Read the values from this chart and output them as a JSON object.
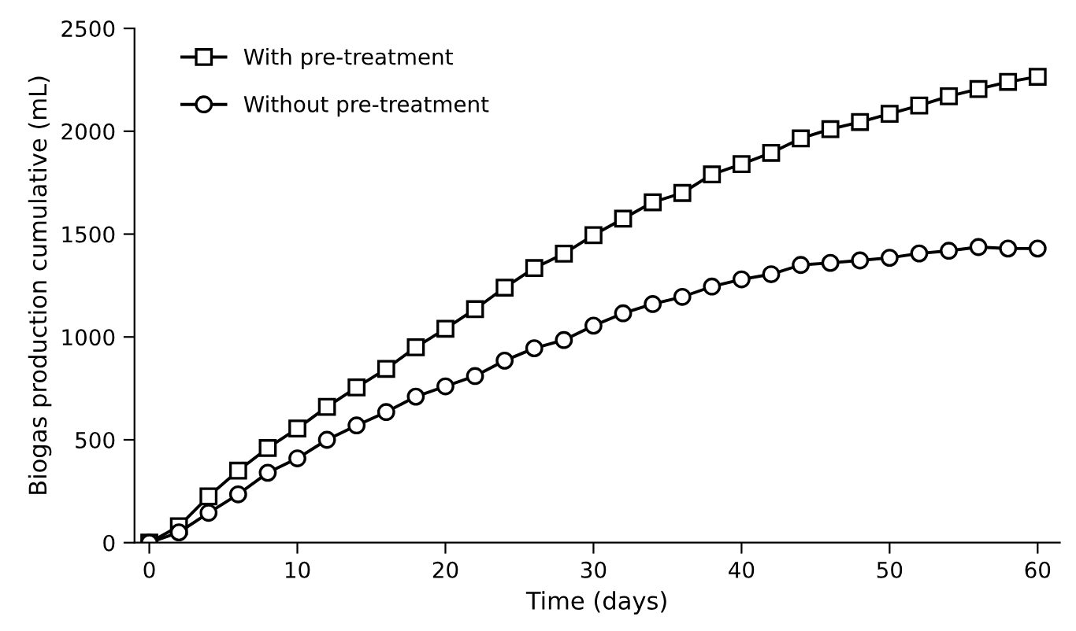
{
  "chart_data": {
    "type": "line",
    "xlabel": "Time (days)",
    "ylabel": "Biogas production cumulative (mL)",
    "x": [
      0,
      2,
      4,
      6,
      8,
      10,
      12,
      14,
      16,
      18,
      20,
      22,
      24,
      26,
      28,
      30,
      32,
      34,
      36,
      38,
      40,
      42,
      44,
      46,
      48,
      50,
      52,
      54,
      56,
      58,
      60
    ],
    "series": [
      {
        "name": "With pre-treatment",
        "color": "#000000",
        "marker": "square",
        "values": [
          0,
          80,
          225,
          350,
          460,
          555,
          660,
          755,
          845,
          950,
          1040,
          1135,
          1240,
          1335,
          1405,
          1495,
          1575,
          1655,
          1700,
          1790,
          1840,
          1895,
          1965,
          2010,
          2045,
          2085,
          2125,
          2170,
          2205,
          2240,
          2265
        ]
      },
      {
        "name": "Without pre-treatment",
        "color": "#000000",
        "marker": "circle",
        "values": [
          0,
          50,
          145,
          235,
          340,
          410,
          500,
          570,
          635,
          710,
          760,
          810,
          885,
          945,
          985,
          1055,
          1115,
          1160,
          1195,
          1245,
          1280,
          1305,
          1350,
          1360,
          1372,
          1385,
          1406,
          1419,
          1437,
          1430,
          1430
        ]
      }
    ],
    "xlim": [
      -1,
      61.5
    ],
    "xticks": [
      0,
      10,
      20,
      30,
      40,
      50,
      60
    ],
    "ylim": [
      0,
      2500
    ],
    "yticks": [
      0,
      500,
      1000,
      1500,
      2000,
      2500
    ],
    "grid": false,
    "legend": "top left",
    "line_style": "solid"
  }
}
